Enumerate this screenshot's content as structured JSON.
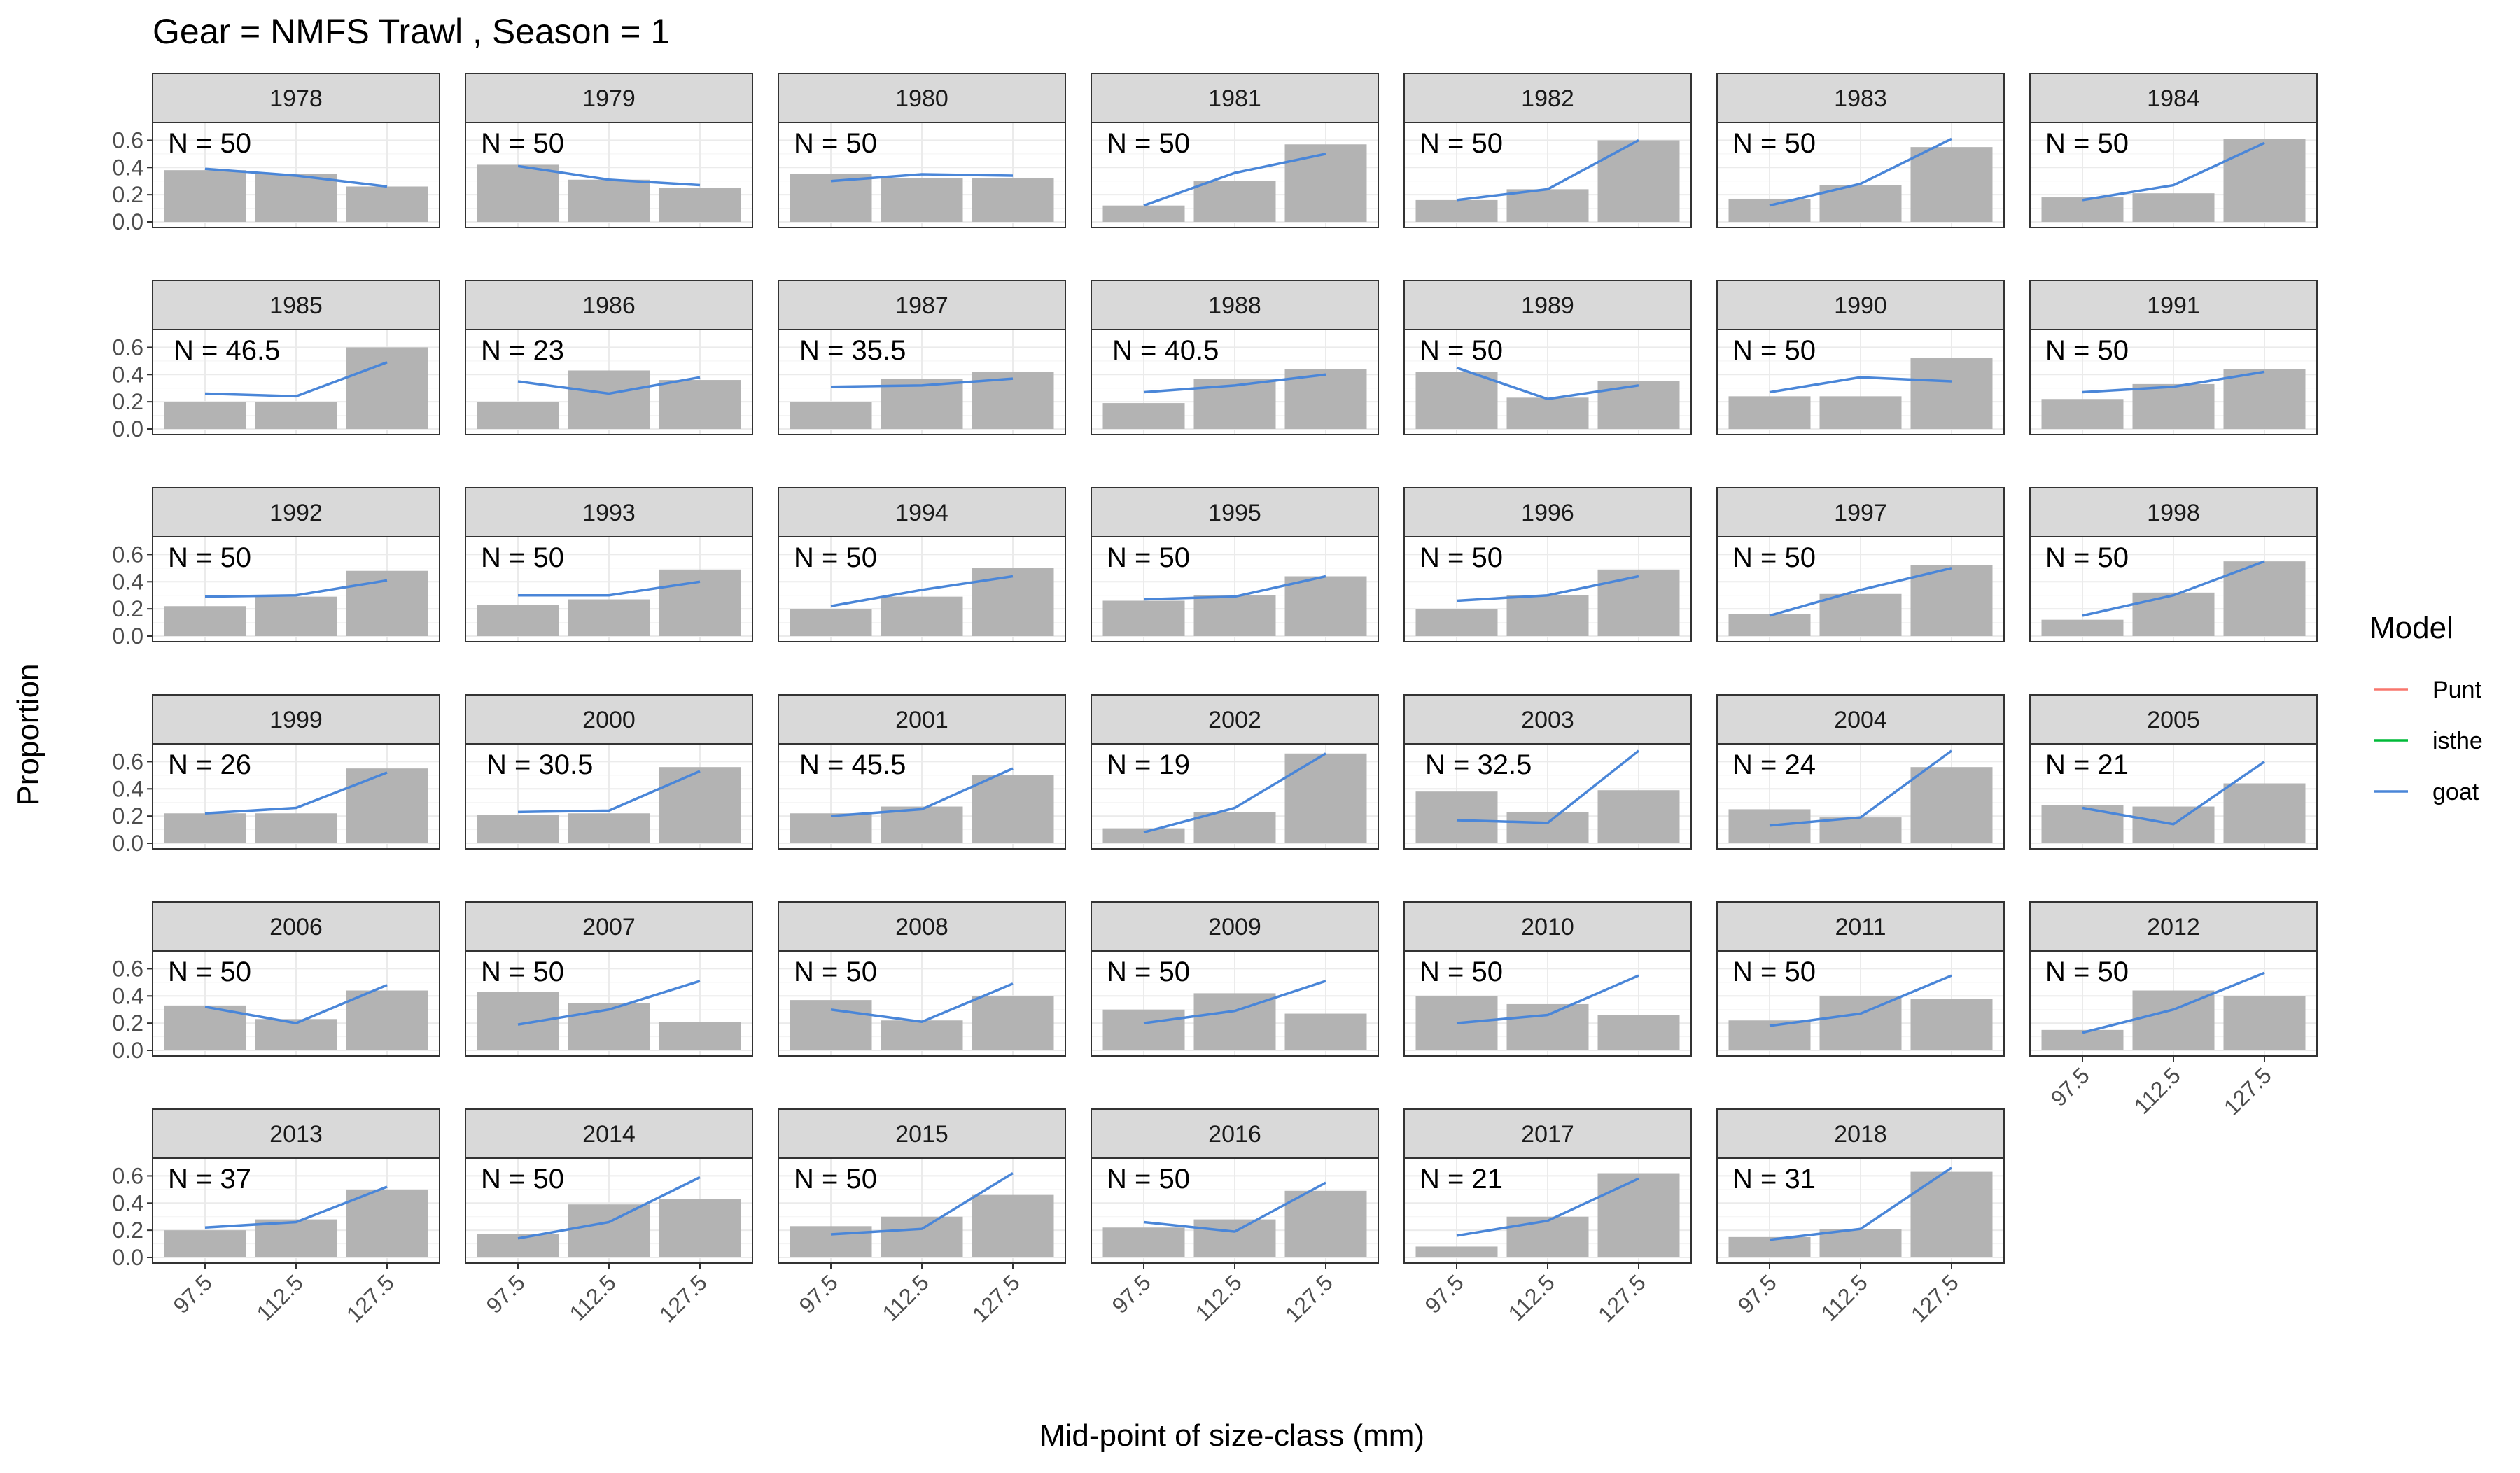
{
  "chart_data": {
    "type": "bar",
    "title": "Gear = NMFS Trawl , Season = 1",
    "xlabel": "Mid-point of size-class (mm)",
    "ylabel": "Proportion",
    "categories": [
      "97.5",
      "112.5",
      "127.5"
    ],
    "y_ticks": [
      "0.0",
      "0.2",
      "0.4",
      "0.6"
    ],
    "ylim": [
      0,
      0.7
    ],
    "grid": true,
    "legend": {
      "title": "Model",
      "position": "right",
      "entries": [
        {
          "name": "Punt",
          "color": "#F8766D"
        },
        {
          "name": "isthe",
          "color": "#00BA38"
        },
        {
          "name": "goat",
          "color": "#4A86D8"
        }
      ]
    },
    "bar_color": "#B3B3B3",
    "line_color": "#4A86D8",
    "panels": [
      {
        "year": "1978",
        "n_label": "N = 50",
        "observed": [
          0.38,
          0.35,
          0.26
        ],
        "goat": [
          0.39,
          0.34,
          0.26
        ]
      },
      {
        "year": "1979",
        "n_label": "N = 50",
        "observed": [
          0.42,
          0.31,
          0.25
        ],
        "goat": [
          0.41,
          0.31,
          0.27
        ]
      },
      {
        "year": "1980",
        "n_label": "N = 50",
        "observed": [
          0.35,
          0.32,
          0.32
        ],
        "goat": [
          0.3,
          0.35,
          0.34
        ]
      },
      {
        "year": "1981",
        "n_label": "N = 50",
        "observed": [
          0.12,
          0.3,
          0.57
        ],
        "goat": [
          0.12,
          0.36,
          0.5
        ]
      },
      {
        "year": "1982",
        "n_label": "N = 50",
        "observed": [
          0.16,
          0.24,
          0.6
        ],
        "goat": [
          0.16,
          0.24,
          0.6
        ]
      },
      {
        "year": "1983",
        "n_label": "N = 50",
        "observed": [
          0.17,
          0.27,
          0.55
        ],
        "goat": [
          0.12,
          0.28,
          0.61
        ]
      },
      {
        "year": "1984",
        "n_label": "N = 50",
        "observed": [
          0.18,
          0.21,
          0.61
        ],
        "goat": [
          0.16,
          0.27,
          0.58
        ]
      },
      {
        "year": "1985",
        "n_label": "N = 46.5",
        "observed": [
          0.2,
          0.2,
          0.6
        ],
        "goat": [
          0.26,
          0.24,
          0.49
        ]
      },
      {
        "year": "1986",
        "n_label": "N = 23",
        "observed": [
          0.2,
          0.43,
          0.36
        ],
        "goat": [
          0.35,
          0.26,
          0.38
        ]
      },
      {
        "year": "1987",
        "n_label": "N = 35.5",
        "observed": [
          0.2,
          0.37,
          0.42
        ],
        "goat": [
          0.31,
          0.32,
          0.37
        ]
      },
      {
        "year": "1988",
        "n_label": "N = 40.5",
        "observed": [
          0.19,
          0.37,
          0.44
        ],
        "goat": [
          0.27,
          0.32,
          0.4
        ]
      },
      {
        "year": "1989",
        "n_label": "N = 50",
        "observed": [
          0.42,
          0.23,
          0.35
        ],
        "goat": [
          0.45,
          0.22,
          0.32
        ]
      },
      {
        "year": "1990",
        "n_label": "N = 50",
        "observed": [
          0.24,
          0.24,
          0.52
        ],
        "goat": [
          0.27,
          0.38,
          0.35
        ]
      },
      {
        "year": "1991",
        "n_label": "N = 50",
        "observed": [
          0.22,
          0.33,
          0.44
        ],
        "goat": [
          0.27,
          0.31,
          0.42
        ]
      },
      {
        "year": "1992",
        "n_label": "N = 50",
        "observed": [
          0.22,
          0.29,
          0.48
        ],
        "goat": [
          0.29,
          0.3,
          0.41
        ]
      },
      {
        "year": "1993",
        "n_label": "N = 50",
        "observed": [
          0.23,
          0.27,
          0.49
        ],
        "goat": [
          0.3,
          0.3,
          0.4
        ]
      },
      {
        "year": "1994",
        "n_label": "N = 50",
        "observed": [
          0.2,
          0.29,
          0.5
        ],
        "goat": [
          0.22,
          0.34,
          0.44
        ]
      },
      {
        "year": "1995",
        "n_label": "N = 50",
        "observed": [
          0.26,
          0.3,
          0.44
        ],
        "goat": [
          0.27,
          0.29,
          0.44
        ]
      },
      {
        "year": "1996",
        "n_label": "N = 50",
        "observed": [
          0.2,
          0.3,
          0.49
        ],
        "goat": [
          0.26,
          0.3,
          0.44
        ]
      },
      {
        "year": "1997",
        "n_label": "N = 50",
        "observed": [
          0.16,
          0.31,
          0.52
        ],
        "goat": [
          0.15,
          0.34,
          0.5
        ]
      },
      {
        "year": "1998",
        "n_label": "N = 50",
        "observed": [
          0.12,
          0.32,
          0.55
        ],
        "goat": [
          0.15,
          0.3,
          0.55
        ]
      },
      {
        "year": "1999",
        "n_label": "N = 26",
        "observed": [
          0.22,
          0.22,
          0.55
        ],
        "goat": [
          0.22,
          0.26,
          0.52
        ]
      },
      {
        "year": "2000",
        "n_label": "N = 30.5",
        "observed": [
          0.21,
          0.22,
          0.56
        ],
        "goat": [
          0.23,
          0.24,
          0.53
        ]
      },
      {
        "year": "2001",
        "n_label": "N = 45.5",
        "observed": [
          0.22,
          0.27,
          0.5
        ],
        "goat": [
          0.2,
          0.25,
          0.55
        ]
      },
      {
        "year": "2002",
        "n_label": "N = 19",
        "observed": [
          0.11,
          0.23,
          0.66
        ],
        "goat": [
          0.08,
          0.26,
          0.66
        ]
      },
      {
        "year": "2003",
        "n_label": "N = 32.5",
        "observed": [
          0.38,
          0.23,
          0.39
        ],
        "goat": [
          0.17,
          0.15,
          0.68
        ]
      },
      {
        "year": "2004",
        "n_label": "N = 24",
        "observed": [
          0.25,
          0.19,
          0.56
        ],
        "goat": [
          0.13,
          0.19,
          0.68
        ]
      },
      {
        "year": "2005",
        "n_label": "N = 21",
        "observed": [
          0.28,
          0.27,
          0.44
        ],
        "goat": [
          0.26,
          0.14,
          0.6
        ]
      },
      {
        "year": "2006",
        "n_label": "N = 50",
        "observed": [
          0.33,
          0.23,
          0.44
        ],
        "goat": [
          0.32,
          0.2,
          0.48
        ]
      },
      {
        "year": "2007",
        "n_label": "N = 50",
        "observed": [
          0.43,
          0.35,
          0.21
        ],
        "goat": [
          0.19,
          0.3,
          0.51
        ]
      },
      {
        "year": "2008",
        "n_label": "N = 50",
        "observed": [
          0.37,
          0.22,
          0.4
        ],
        "goat": [
          0.3,
          0.21,
          0.49
        ]
      },
      {
        "year": "2009",
        "n_label": "N = 50",
        "observed": [
          0.3,
          0.42,
          0.27
        ],
        "goat": [
          0.2,
          0.29,
          0.51
        ]
      },
      {
        "year": "2010",
        "n_label": "N = 50",
        "observed": [
          0.4,
          0.34,
          0.26
        ],
        "goat": [
          0.2,
          0.26,
          0.55
        ]
      },
      {
        "year": "2011",
        "n_label": "N = 50",
        "observed": [
          0.22,
          0.4,
          0.38
        ],
        "goat": [
          0.18,
          0.27,
          0.55
        ]
      },
      {
        "year": "2012",
        "n_label": "N = 50",
        "observed": [
          0.15,
          0.44,
          0.4
        ],
        "goat": [
          0.13,
          0.3,
          0.57
        ]
      },
      {
        "year": "2013",
        "n_label": "N = 37",
        "observed": [
          0.2,
          0.28,
          0.5
        ],
        "goat": [
          0.22,
          0.26,
          0.52
        ]
      },
      {
        "year": "2014",
        "n_label": "N = 50",
        "observed": [
          0.17,
          0.39,
          0.43
        ],
        "goat": [
          0.14,
          0.26,
          0.59
        ]
      },
      {
        "year": "2015",
        "n_label": "N = 50",
        "observed": [
          0.23,
          0.3,
          0.46
        ],
        "goat": [
          0.17,
          0.21,
          0.62
        ]
      },
      {
        "year": "2016",
        "n_label": "N = 50",
        "observed": [
          0.22,
          0.28,
          0.49
        ],
        "goat": [
          0.26,
          0.19,
          0.55
        ]
      },
      {
        "year": "2017",
        "n_label": "N = 21",
        "observed": [
          0.08,
          0.3,
          0.62
        ],
        "goat": [
          0.16,
          0.27,
          0.58
        ]
      },
      {
        "year": "2018",
        "n_label": "N = 31",
        "observed": [
          0.15,
          0.21,
          0.63
        ],
        "goat": [
          0.13,
          0.21,
          0.66
        ]
      }
    ]
  }
}
